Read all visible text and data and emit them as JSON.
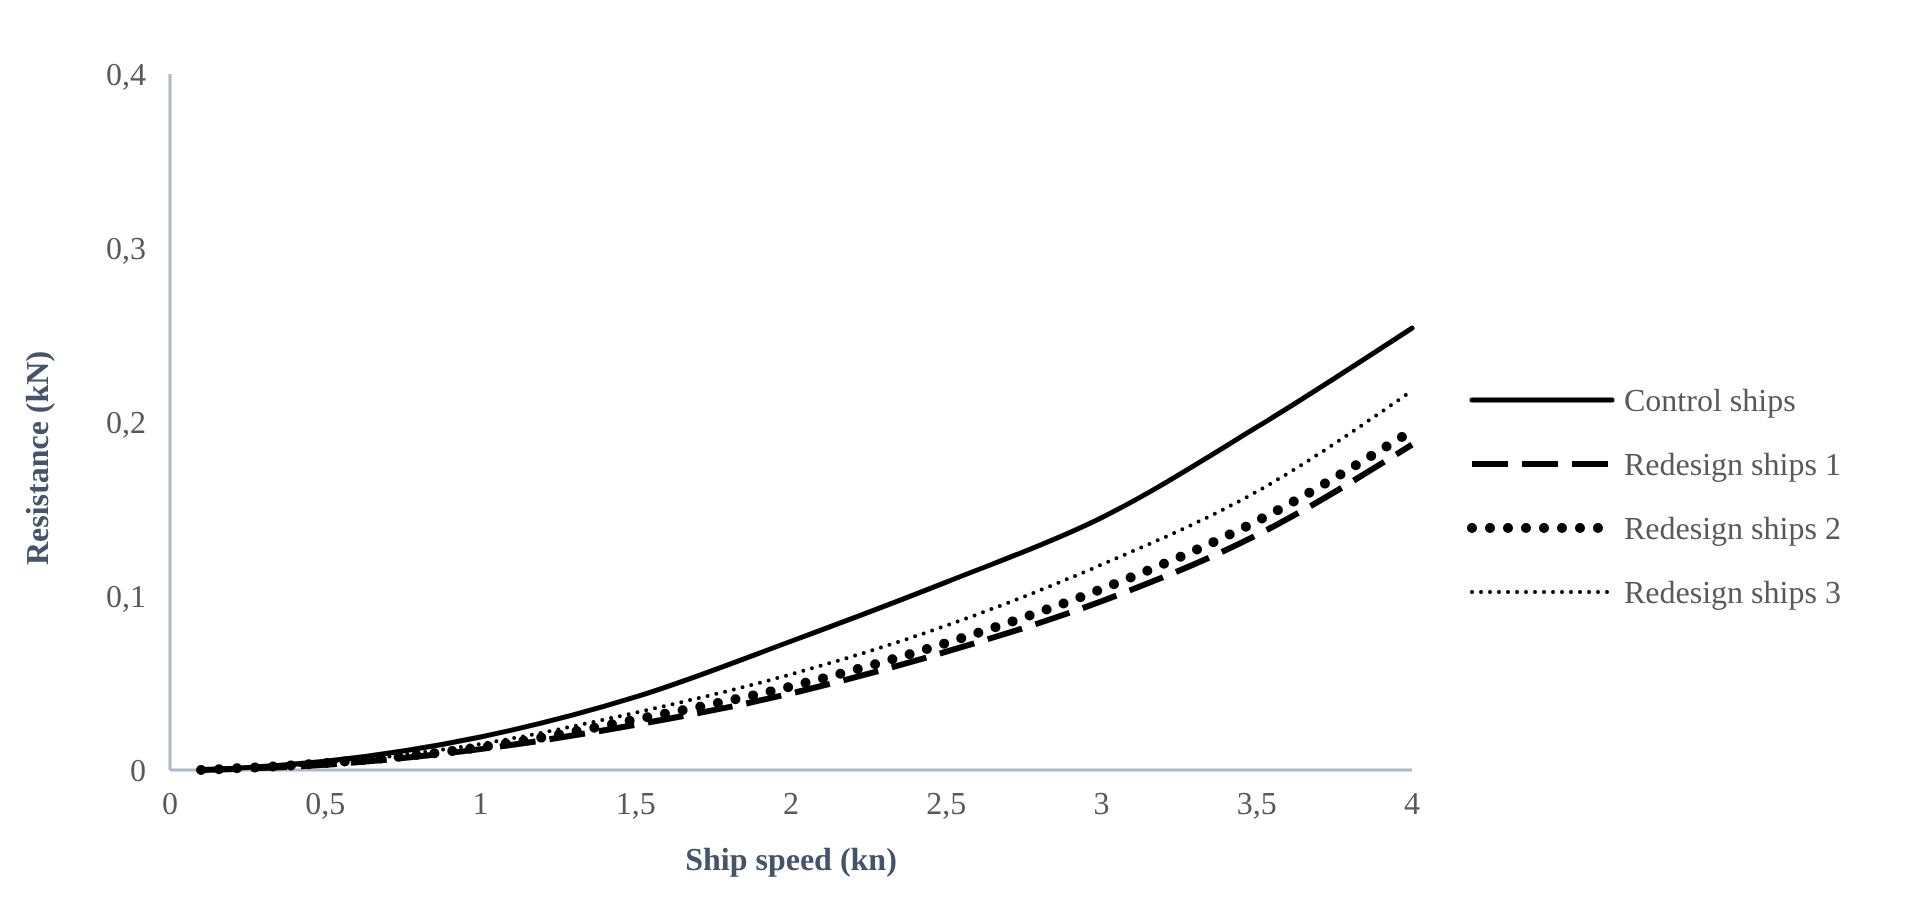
{
  "chart_data": {
    "type": "line",
    "xlabel": "Ship speed (kn)",
    "ylabel": "Resistance (kN)",
    "x": [
      0.1,
      0.5,
      1,
      1.5,
      2,
      2.5,
      3,
      3.5,
      4
    ],
    "xlim": [
      0,
      4
    ],
    "xticks": [
      0,
      {
        "value": 0.5,
        "label": "0,5"
      },
      1,
      {
        "value": 1.5,
        "label": "1,5"
      },
      2,
      {
        "value": 2.5,
        "label": "2,5"
      },
      3,
      {
        "value": 3.5,
        "label": "3,5"
      },
      4
    ],
    "ylim": [
      0,
      0.4
    ],
    "yticks": [
      0,
      {
        "value": 0.1,
        "label": "0,1"
      },
      {
        "value": 0.2,
        "label": "0,2"
      },
      {
        "value": 0.3,
        "label": "0,3"
      },
      {
        "value": 0.4,
        "label": "0,4"
      }
    ],
    "grid": false,
    "legend": "right",
    "marker": "none",
    "series": [
      {
        "name": "Control ships",
        "color": "#000000",
        "line_style": "solid",
        "values": [
          0,
          0.005,
          0.019,
          0.042,
          0.074,
          0.108,
          0.145,
          0.197,
          0.254
        ]
      },
      {
        "name": "Redesign ships 1",
        "color": "#000000",
        "line_style": "dashed",
        "values": [
          0,
          0.003,
          0.012,
          0.026,
          0.044,
          0.068,
          0.097,
          0.135,
          0.187
        ]
      },
      {
        "name": "Redesign ships 2",
        "color": "#000000",
        "line_style": "dotted",
        "values": [
          0,
          0.004,
          0.013,
          0.029,
          0.048,
          0.073,
          0.104,
          0.143,
          0.195
        ]
      },
      {
        "name": "Redesign ships 3",
        "color": "#000000",
        "line_style": "dotted",
        "values": [
          0,
          0.004,
          0.015,
          0.033,
          0.055,
          0.083,
          0.118,
          0.16,
          0.218
        ]
      }
    ]
  }
}
